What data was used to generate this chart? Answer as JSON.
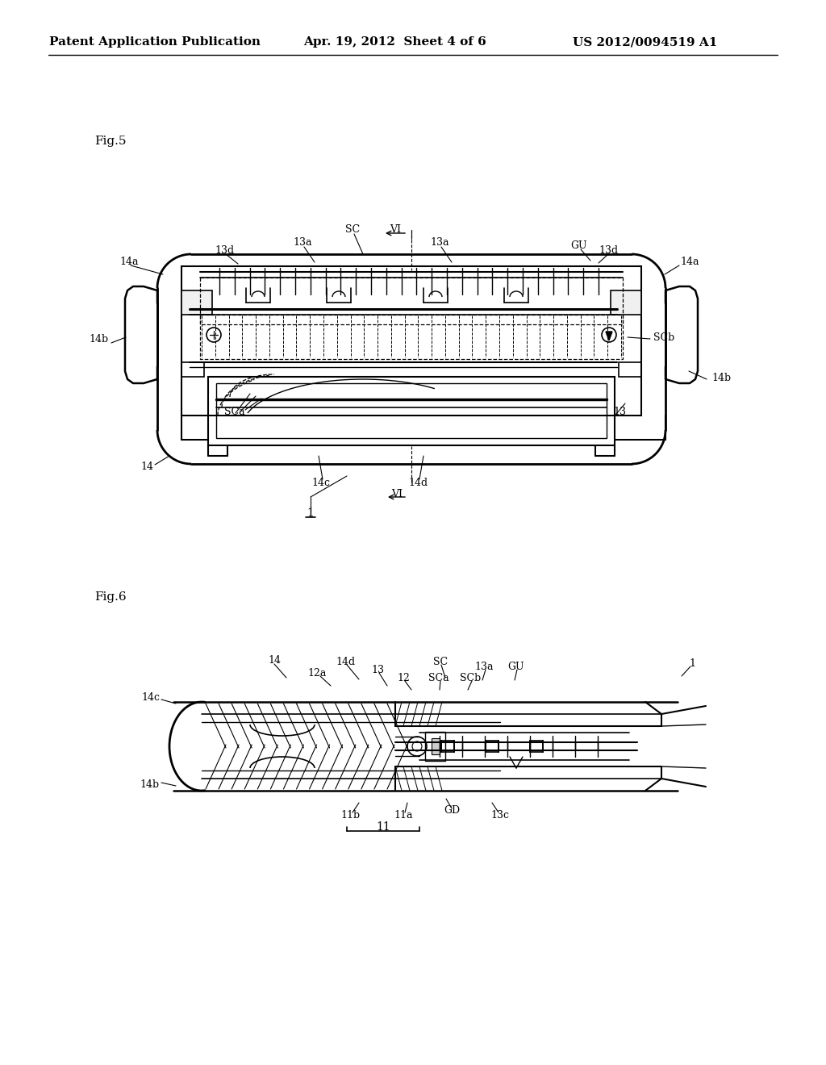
{
  "background_color": "#ffffff",
  "header_left": "Patent Application Publication",
  "header_mid": "Apr. 19, 2012  Sheet 4 of 6",
  "header_right": "US 2012/0094519 A1",
  "fig5_label": "Fig.5",
  "fig6_label": "Fig.6",
  "text_color": "#000000",
  "line_color": "#000000"
}
